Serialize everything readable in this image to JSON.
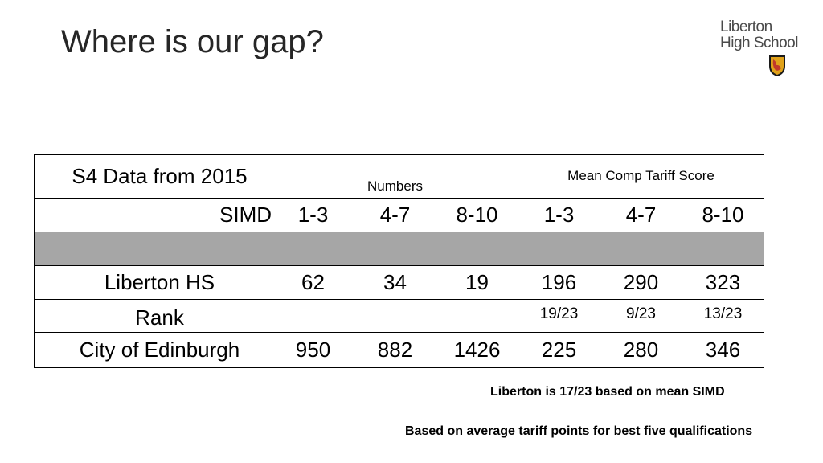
{
  "slide": {
    "title": "Where is our gap?"
  },
  "logo": {
    "line1": "Liberton",
    "line2": "High School"
  },
  "table": {
    "header_label": "S4 Data from 2015",
    "group_numbers": "Numbers",
    "group_tariff": "Mean Comp Tariff Score",
    "simd_label": "SIMD",
    "simd_bands": [
      "1-3",
      "4-7",
      "8-10",
      "1-3",
      "4-7",
      "8-10"
    ],
    "rows": [
      {
        "label": "Liberton HS",
        "values": [
          "62",
          "34",
          "19",
          "196",
          "290",
          "323"
        ]
      },
      {
        "label": "Rank",
        "values": [
          "",
          "",
          "",
          "19/23",
          "9/23",
          "13/23"
        ]
      },
      {
        "label": "City of Edinburgh",
        "values": [
          "950",
          "882",
          "1426",
          "225",
          "280",
          "346"
        ]
      }
    ]
  },
  "notes": {
    "note1": "Liberton is 17/23 based on mean SIMD",
    "note2": "Based on average tariff points for best five qualifications"
  },
  "colors": {
    "gray_row": "#a6a6a6",
    "crest_red": "#c0392b",
    "crest_gold": "#e0a21a"
  }
}
